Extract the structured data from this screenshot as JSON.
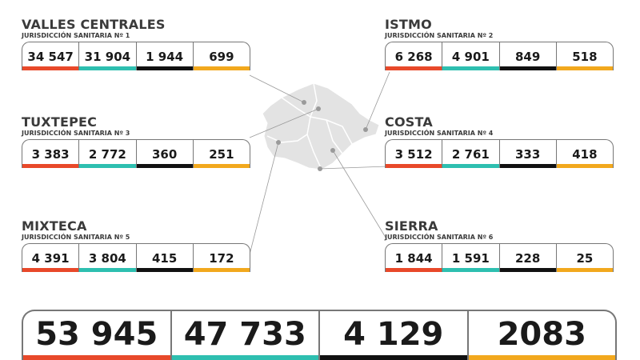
{
  "regions": [
    {
      "name": "VALLES CENTRALES",
      "sub": "JURISDICCIÓN SANITARIA Nº 1",
      "values": [
        "34 547",
        "31 904",
        "1 944",
        "699"
      ]
    },
    {
      "name": "ISTMO",
      "sub": "JURISDICCIÓN SANITARIA Nº 2",
      "values": [
        "6 268",
        "4 901",
        "849",
        "518"
      ]
    },
    {
      "name": "TUXTEPEC",
      "sub": "JURISDICCIÓN SANITARIA Nº 3",
      "values": [
        "3 383",
        "2 772",
        "360",
        "251"
      ]
    },
    {
      "name": "COSTA",
      "sub": "JURISDICCIÓN SANITARIA Nº 4",
      "values": [
        "3 512",
        "2 761",
        "333",
        "418"
      ]
    },
    {
      "name": "MIXTECA",
      "sub": "JURISDICCIÓN SANITARIA Nº 5",
      "values": [
        "4 391",
        "3 804",
        "415",
        "172"
      ]
    },
    {
      "name": "SIERRA",
      "sub": "JURISDICCIÓN SANITARIA Nº 6",
      "values": [
        "1 844",
        "1 591",
        "228",
        "25"
      ]
    }
  ],
  "totals": [
    "53 945",
    "47 733",
    "4 129",
    "2083"
  ],
  "colors": {
    "col1": "#e8492a",
    "col2": "#2ebfb0",
    "col3": "#111111",
    "col4": "#f2a81d",
    "map": "#e3e3e3",
    "border": "#777777"
  }
}
